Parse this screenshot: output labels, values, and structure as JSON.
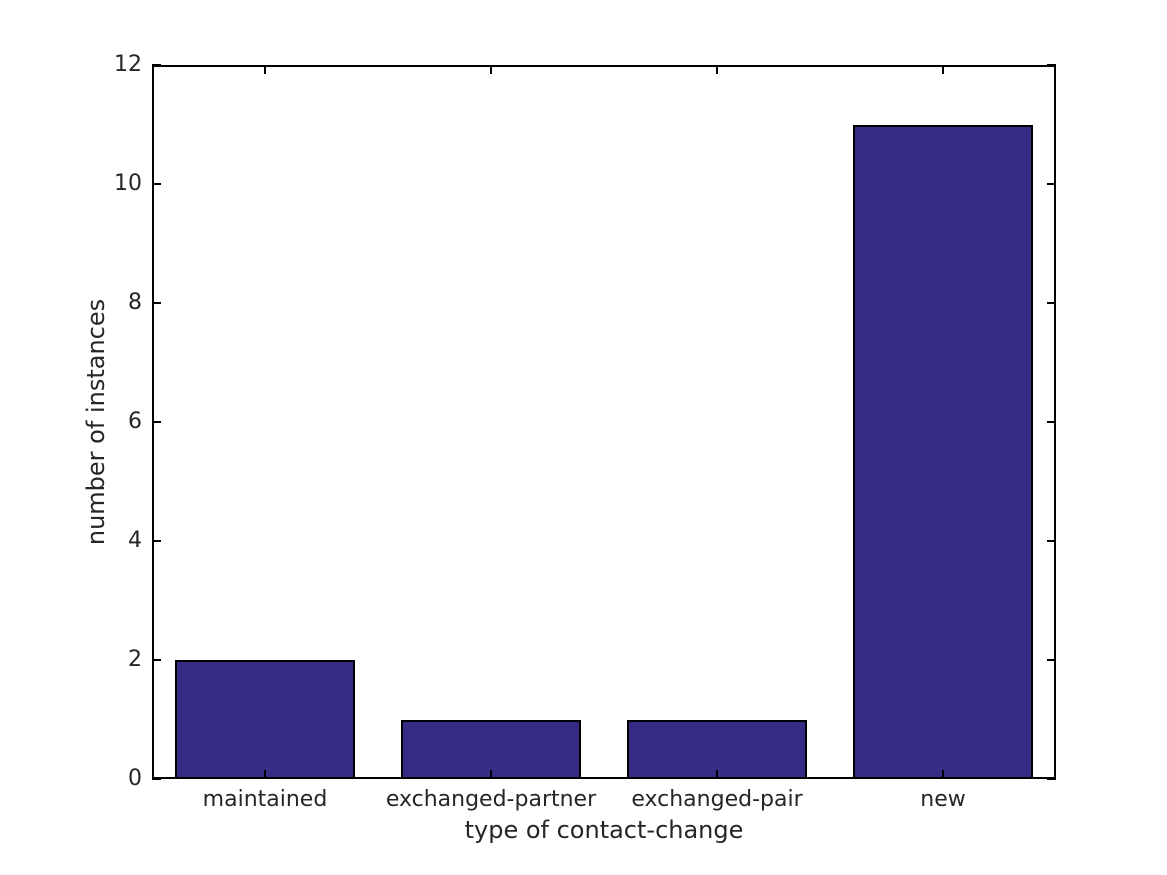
{
  "chart_data": {
    "type": "bar",
    "title": "",
    "categories": [
      "maintained",
      "exchanged-partner",
      "exchanged-pair",
      "new"
    ],
    "values": [
      2,
      1,
      1,
      11
    ],
    "xlabel": "type of contact-change",
    "ylabel": "number of instances",
    "ylim": [
      0,
      12
    ],
    "yticks": [
      0,
      2,
      4,
      6,
      8,
      10,
      12
    ],
    "bar_color": "#352c86",
    "bar_edge_color": "#000000",
    "axis_color": "#000000",
    "text_color": "#262626",
    "bar_width_fraction": 0.8,
    "grid": false,
    "legend": "none",
    "tick_direction": "in",
    "box": true
  }
}
